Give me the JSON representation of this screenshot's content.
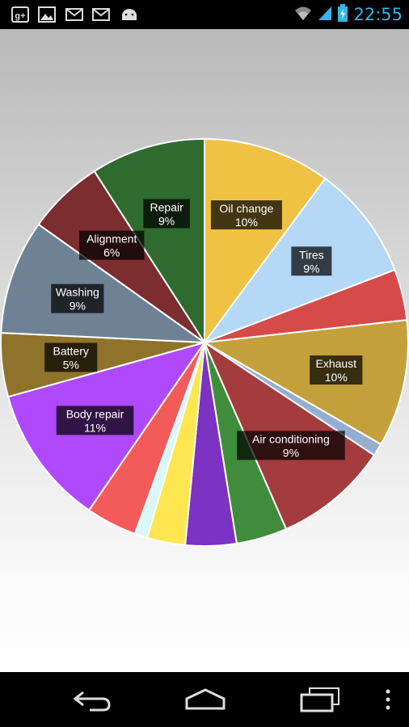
{
  "status_bar": {
    "time": "22:55",
    "notification_icons": [
      "google-plus-icon",
      "gallery-icon",
      "gmail-icon",
      "gmail-icon",
      "android-icon"
    ],
    "system_icons": [
      "wifi-icon",
      "signal-icon",
      "battery-charging-icon"
    ]
  },
  "nav_bar": {
    "buttons": [
      "back-icon",
      "home-icon",
      "recent-apps-icon",
      "overflow-menu-icon"
    ]
  },
  "colors": {
    "status_accent": "#33b5e5",
    "label_bg": "#000000"
  },
  "chart_data": {
    "type": "pie",
    "start_angle_deg": 0,
    "direction": "clockwise",
    "slices": [
      {
        "label": "Oil change",
        "percent_label": "10%",
        "value": 10,
        "color": "#f0c244"
      },
      {
        "label": "Tires",
        "percent_label": "9%",
        "value": 9,
        "color": "#b4d8f6"
      },
      {
        "label": "",
        "percent_label": "",
        "value": 4,
        "color": "#d74a4a"
      },
      {
        "label": "Exhaust",
        "percent_label": "10%",
        "value": 10,
        "color": "#c4a03a"
      },
      {
        "label": "",
        "percent_label": "",
        "value": 1,
        "color": "#95add0"
      },
      {
        "label": "Air conditioning",
        "percent_label": "9%",
        "value": 9,
        "color": "#a43b3d"
      },
      {
        "label": "",
        "percent_label": "",
        "value": 4,
        "color": "#3f8d3a"
      },
      {
        "label": "",
        "percent_label": "",
        "value": 4,
        "color": "#7c32c2"
      },
      {
        "label": "",
        "percent_label": "",
        "value": 3,
        "color": "#fde650"
      },
      {
        "label": "",
        "percent_label": "",
        "value": 1,
        "color": "#d8f8fb"
      },
      {
        "label": "",
        "percent_label": "",
        "value": 4,
        "color": "#f35a5a"
      },
      {
        "label": "Body repair",
        "percent_label": "11%",
        "value": 11,
        "color": "#b048fb"
      },
      {
        "label": "Battery",
        "percent_label": "5%",
        "value": 5,
        "color": "#8f732b"
      },
      {
        "label": "Washing",
        "percent_label": "9%",
        "value": 9,
        "color": "#6f8295"
      },
      {
        "label": "Alignment",
        "percent_label": "6%",
        "value": 6,
        "color": "#7b2d2f"
      },
      {
        "label": "Repair",
        "percent_label": "9%",
        "value": 9,
        "color": "#2f6a2f"
      }
    ]
  }
}
